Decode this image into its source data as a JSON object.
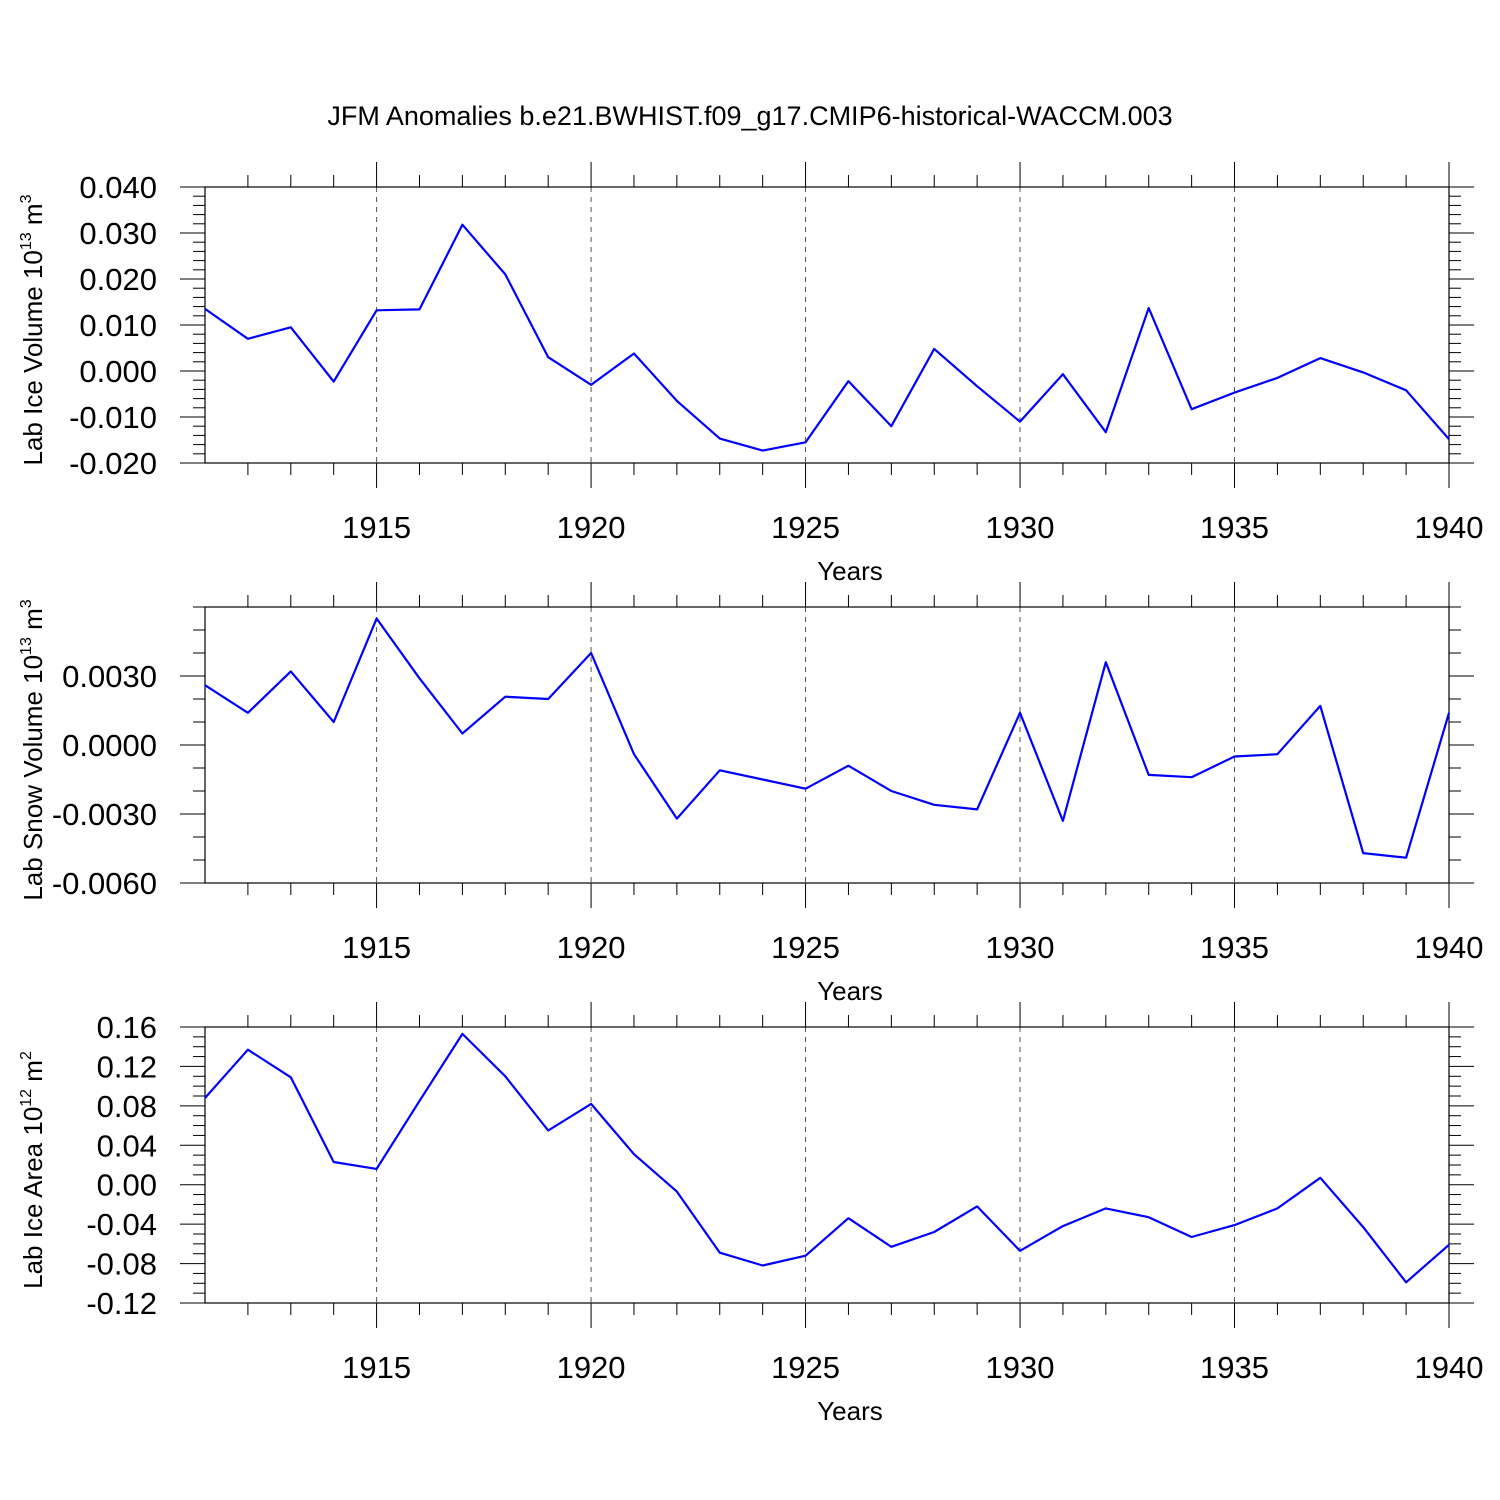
{
  "title": "JFM Anomalies b.e21.BWHIST.f09_g17.CMIP6-historical-WACCM.003",
  "colors": {
    "series": "#0000ff",
    "axis": "#000000",
    "grid": "#555555"
  },
  "chart_data": [
    {
      "type": "line",
      "xlabel": "Years",
      "ylabel": {
        "prefix": "Lab Ice Volume 10",
        "exp": "13",
        "unit": " m",
        "unit_exp": "3"
      },
      "xlim": [
        1911,
        1940
      ],
      "ylim": [
        -0.02,
        0.04
      ],
      "xticks": [
        1915,
        1920,
        1925,
        1930,
        1935,
        1940
      ],
      "yticks": [
        -0.02,
        -0.01,
        0.0,
        0.01,
        0.02,
        0.03,
        0.04
      ],
      "ytick_labels": [
        "-0.020",
        "-0.010",
        "0.000",
        "0.010",
        "0.020",
        "0.030",
        "0.040"
      ],
      "yminor_step": 0.002,
      "grid": "vertical dashed at major x ticks",
      "x": [
        1911,
        1912,
        1913,
        1914,
        1915,
        1916,
        1917,
        1918,
        1919,
        1920,
        1921,
        1922,
        1923,
        1924,
        1925,
        1926,
        1927,
        1928,
        1929,
        1930,
        1931,
        1932,
        1933,
        1934,
        1935,
        1936,
        1937,
        1938,
        1939,
        1940
      ],
      "values": [
        0.0135,
        0.007,
        0.0095,
        -0.0023,
        0.0132,
        0.0134,
        0.0318,
        0.021,
        0.003,
        -0.003,
        0.0038,
        -0.0065,
        -0.0147,
        -0.0173,
        -0.0155,
        -0.0022,
        -0.012,
        0.0048,
        -0.0033,
        -0.011,
        -0.0007,
        -0.0133,
        0.0137,
        -0.0083,
        -0.0047,
        -0.0015,
        0.0028,
        -0.0003,
        -0.0042,
        -0.0148
      ]
    },
    {
      "type": "line",
      "xlabel": "Years",
      "ylabel": {
        "prefix": "Lab Snow Volume 10",
        "exp": "13",
        "unit": " m",
        "unit_exp": "3"
      },
      "xlim": [
        1911,
        1940
      ],
      "ylim": [
        -0.006,
        0.006
      ],
      "xticks": [
        1915,
        1920,
        1925,
        1930,
        1935,
        1940
      ],
      "yticks": [
        -0.006,
        -0.003,
        0.0,
        0.003
      ],
      "ytick_labels": [
        "-0.0060",
        "-0.0030",
        "0.0000",
        "0.0030"
      ],
      "yminor_step": 0.001,
      "grid": "vertical dashed at major x ticks",
      "x": [
        1911,
        1912,
        1913,
        1914,
        1915,
        1916,
        1917,
        1918,
        1919,
        1920,
        1921,
        1922,
        1923,
        1924,
        1925,
        1926,
        1927,
        1928,
        1929,
        1930,
        1931,
        1932,
        1933,
        1934,
        1935,
        1936,
        1937,
        1938,
        1939,
        1940
      ],
      "values": [
        0.0026,
        0.0014,
        0.0032,
        0.001,
        0.0055,
        0.0029,
        0.0005,
        0.0021,
        0.002,
        0.004,
        -0.0004,
        -0.0032,
        -0.0011,
        -0.0015,
        -0.0019,
        -0.0009,
        -0.002,
        -0.0026,
        -0.0028,
        0.0014,
        -0.0033,
        0.0036,
        -0.0013,
        -0.0014,
        -0.0005,
        -0.0004,
        0.0017,
        -0.0047,
        -0.0049,
        0.0014
      ]
    },
    {
      "type": "line",
      "xlabel": "Years",
      "ylabel": {
        "prefix": "Lab Ice Area 10",
        "exp": "12",
        "unit": " m",
        "unit_exp": "2"
      },
      "xlim": [
        1911,
        1940
      ],
      "ylim": [
        -0.12,
        0.16
      ],
      "xticks": [
        1915,
        1920,
        1925,
        1930,
        1935,
        1940
      ],
      "yticks": [
        -0.12,
        -0.08,
        -0.04,
        0.0,
        0.04,
        0.08,
        0.12,
        0.16
      ],
      "ytick_labels": [
        "-0.12",
        "-0.08",
        "-0.04",
        "0.00",
        "0.04",
        "0.08",
        "0.12",
        "0.16"
      ],
      "yminor_step": 0.01,
      "grid": "vertical dashed at major x ticks",
      "x": [
        1911,
        1912,
        1913,
        1914,
        1915,
        1916,
        1917,
        1918,
        1919,
        1920,
        1921,
        1922,
        1923,
        1924,
        1925,
        1926,
        1927,
        1928,
        1929,
        1930,
        1931,
        1932,
        1933,
        1934,
        1935,
        1936,
        1937,
        1938,
        1939,
        1940
      ],
      "values": [
        0.088,
        0.137,
        0.109,
        0.023,
        0.016,
        0.085,
        0.153,
        0.11,
        0.055,
        0.082,
        0.031,
        -0.007,
        -0.069,
        -0.082,
        -0.072,
        -0.034,
        -0.063,
        -0.048,
        -0.022,
        -0.067,
        -0.042,
        -0.024,
        -0.033,
        -0.053,
        -0.041,
        -0.024,
        0.007,
        -0.043,
        -0.099,
        -0.061
      ]
    }
  ]
}
